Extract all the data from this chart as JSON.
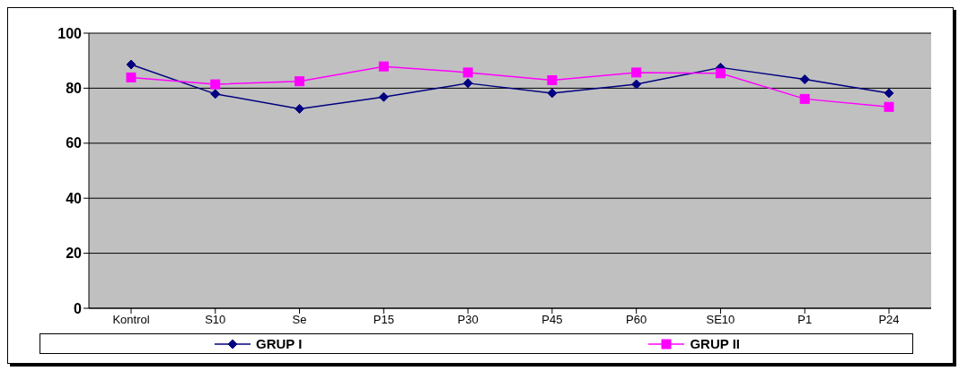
{
  "chart_data": {
    "type": "line",
    "categories": [
      "Kontrol",
      "S10",
      "Se",
      "P15",
      "P30",
      "P45",
      "P60",
      "SE10",
      "P1",
      "P24"
    ],
    "series": [
      {
        "name": "GRUP I",
        "color": "#000080",
        "marker": "diamond",
        "values": [
          88.6,
          77.9,
          72.5,
          76.8,
          81.8,
          78.2,
          81.4,
          87.5,
          83.2,
          78.2
        ]
      },
      {
        "name": "GRUP II",
        "color": "#ff00ff",
        "marker": "square",
        "values": [
          83.9,
          81.4,
          82.5,
          87.9,
          85.7,
          82.9,
          85.7,
          85.4,
          76.1,
          73.2
        ]
      }
    ],
    "ylim": [
      0,
      100
    ],
    "yticks": [
      0,
      20,
      40,
      60,
      80,
      100
    ],
    "grid": "y",
    "legend": "bottom"
  }
}
